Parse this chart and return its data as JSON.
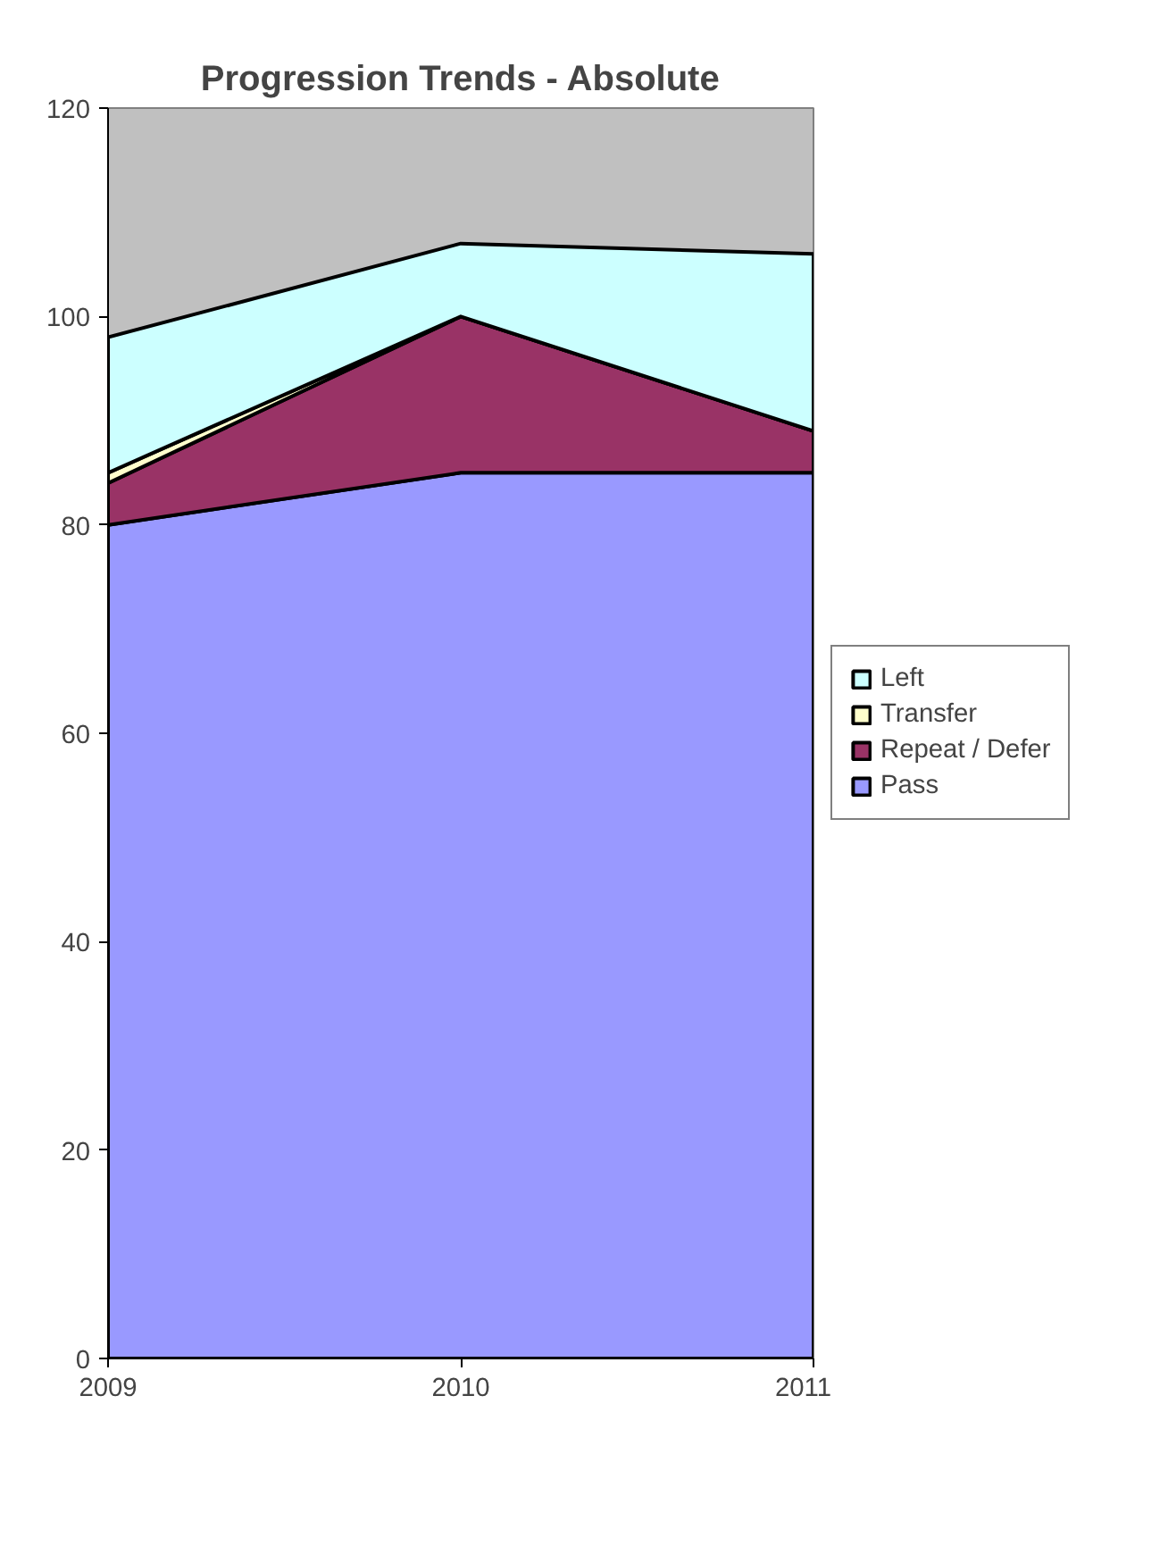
{
  "chart_data": {
    "type": "area",
    "title": "Progression Trends - Absolute",
    "stacked": true,
    "x": [
      2009,
      2010,
      2011
    ],
    "series": [
      {
        "name": "Pass",
        "color": "#9999ff",
        "values": [
          80,
          85,
          85
        ]
      },
      {
        "name": "Repeat / Defer",
        "color": "#993366",
        "values": [
          4,
          15,
          4
        ]
      },
      {
        "name": "Transfer",
        "color": "#ffffcc",
        "values": [
          1,
          0,
          0
        ]
      },
      {
        "name": "Left",
        "color": "#ccffff",
        "values": [
          13,
          7,
          17
        ]
      }
    ],
    "xlim": [
      2009,
      2011
    ],
    "xticks": [
      2009,
      2010,
      2011
    ],
    "ylim": [
      0,
      120
    ],
    "yticks": [
      0,
      20,
      40,
      60,
      80,
      100,
      120
    ],
    "grid": false,
    "legend": "right"
  }
}
